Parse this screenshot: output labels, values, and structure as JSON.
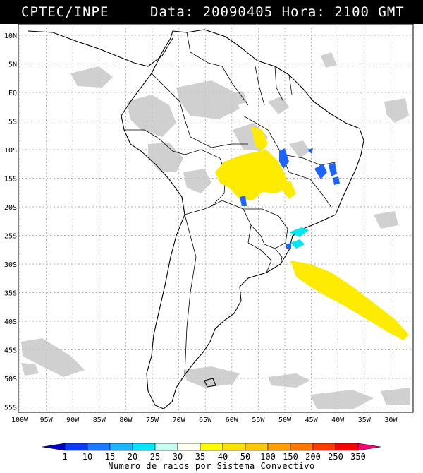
{
  "header": {
    "agency": "CPTEC/INPE",
    "timestamp": "Data: 20090405 Hora: 2100 GMT"
  },
  "map": {
    "lat_labels": [
      "10N",
      "5N",
      "EQ",
      "5S",
      "10S",
      "15S",
      "20S",
      "25S",
      "30S",
      "35S",
      "40S",
      "45S",
      "50S",
      "55S"
    ],
    "lon_labels": [
      "100W",
      "95W",
      "90W",
      "85W",
      "80W",
      "75W",
      "70W",
      "65W",
      "60W",
      "55W",
      "50W",
      "45W",
      "40W",
      "35W",
      "30W"
    ]
  },
  "colorbar": {
    "labels": [
      "1",
      "10",
      "15",
      "20",
      "25",
      "30",
      "35",
      "40",
      "50",
      "100",
      "150",
      "200",
      "250",
      "350"
    ],
    "colors": [
      "#0000cc",
      "#0a3cff",
      "#1e78ff",
      "#1eb4ff",
      "#00e6ff",
      "#c8fff0",
      "#fffff0",
      "#ffff00",
      "#ffe100",
      "#ffc800",
      "#ffa000",
      "#ff7800",
      "#ff3c00",
      "#ff0000",
      "#ff0078"
    ],
    "title": "Numero de raios por Sistema Convectivo"
  }
}
